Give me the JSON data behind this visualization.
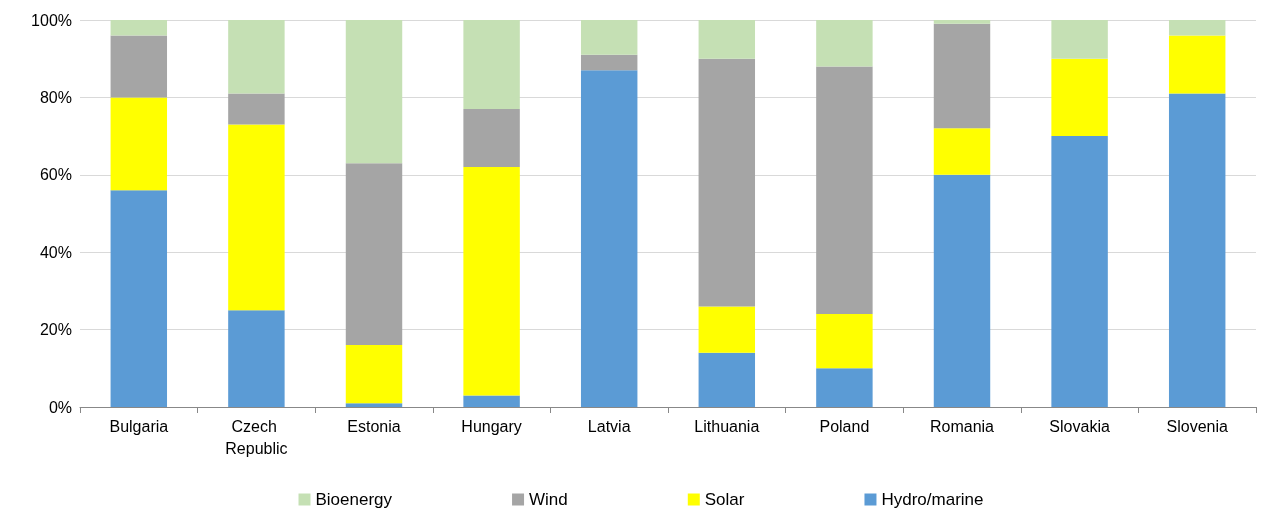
{
  "chart_data": {
    "type": "bar",
    "stacked": true,
    "categories": [
      "Bulgaria",
      "Czech Republic",
      "Estonia",
      "Hungary",
      "Latvia",
      "Lithuania",
      "Poland",
      "Romania",
      "Slovakia",
      "Slovenia"
    ],
    "series": [
      {
        "name": "Hydro/marine",
        "color": "#5b9bd5",
        "values": [
          56,
          25,
          1,
          3,
          87,
          14,
          10,
          60,
          70,
          81
        ]
      },
      {
        "name": "Solar",
        "color": "#ffff00",
        "values": [
          24,
          48,
          15,
          59,
          0,
          12,
          14,
          12,
          20,
          15
        ]
      },
      {
        "name": "Wind",
        "color": "#a5a5a5",
        "values": [
          16,
          8,
          47,
          15,
          4,
          64,
          64,
          27,
          0,
          0
        ]
      },
      {
        "name": "Bioenergy",
        "color": "#c5e0b4",
        "values": [
          4,
          19,
          37,
          23,
          9,
          10,
          12,
          1,
          10,
          4
        ]
      }
    ],
    "ylim": [
      0,
      100
    ],
    "yticks": [
      {
        "value": 0,
        "label": "0%"
      },
      {
        "value": 20,
        "label": "20%"
      },
      {
        "value": 40,
        "label": "40%"
      },
      {
        "value": 60,
        "label": "60%"
      },
      {
        "value": 80,
        "label": "80%"
      },
      {
        "value": 100,
        "label": "100%"
      }
    ],
    "grid": "y",
    "legend": "bottom"
  }
}
